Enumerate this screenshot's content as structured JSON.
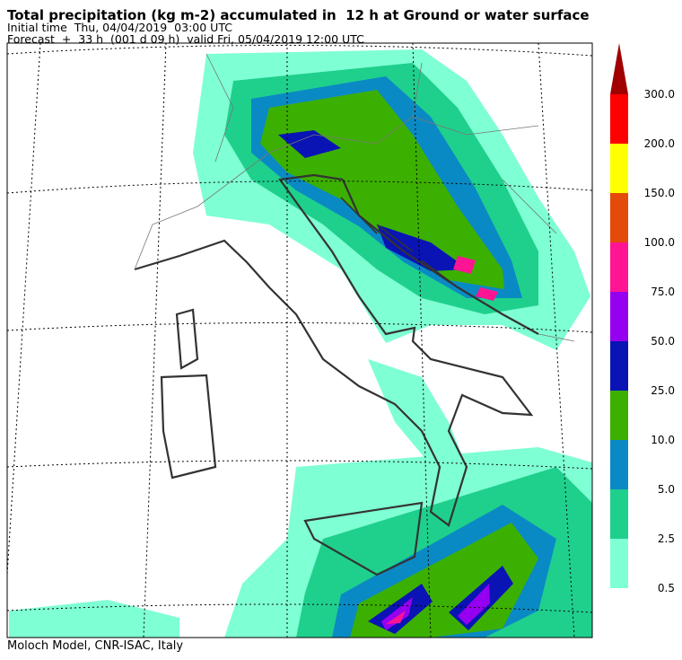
{
  "header": {
    "title": "Total precipitation (kg m-2) accumulated in  12 h at Ground or water surface",
    "initial_time": "Initial time  Thu, 04/04/2019  03:00 UTC",
    "forecast": "Forecast  +  33 h  (001 d 09 h)  valid Fri, 05/04/2019 12:00 UTC"
  },
  "colorbar": {
    "levels": [
      {
        "value": 0.5,
        "label": "0.5"
      },
      {
        "value": 2.5,
        "label": "2.5"
      },
      {
        "value": 5,
        "label": "5.0"
      },
      {
        "value": 10,
        "label": "10.0"
      },
      {
        "value": 25,
        "label": "25.0"
      },
      {
        "value": 50,
        "label": "50.0"
      },
      {
        "value": 75,
        "label": "75.0"
      },
      {
        "value": 100,
        "label": "100.0"
      },
      {
        "value": 150,
        "label": "150.0"
      },
      {
        "value": 200,
        "label": "200.0"
      },
      {
        "value": 300,
        "label": "300.0"
      }
    ],
    "colors": [
      "#7fffd4",
      "#1fd08c",
      "#0a8ac4",
      "#3cb000",
      "#0a14b4",
      "#9600f0",
      "#ff1493",
      "#e44a0a",
      "#ffff00",
      "#ff0000",
      "#a00000"
    ]
  },
  "footer": "Moloch Model, CNR-ISAC, Italy"
}
